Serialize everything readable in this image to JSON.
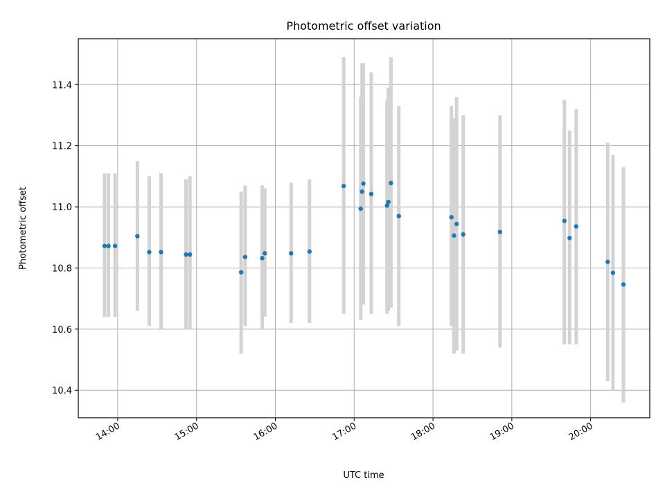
{
  "chart_data": {
    "type": "scatter",
    "title": "Photometric offset variation",
    "xlabel": "UTC time",
    "ylabel": "Photometric offset",
    "x_unit": "UTC time (HH:MM)",
    "xlim": [
      "13:30",
      "20:45"
    ],
    "ylim": [
      10.31,
      11.55
    ],
    "x_ticks": [
      "14:00",
      "15:00",
      "16:00",
      "17:00",
      "18:00",
      "19:00",
      "20:00"
    ],
    "y_ticks": [
      10.4,
      10.6,
      10.8,
      11.0,
      11.2,
      11.4
    ],
    "y_tick_labels": [
      "10.4",
      "10.6",
      "10.8",
      "11.0",
      "11.2",
      "11.4"
    ],
    "grid": true,
    "legend": "none",
    "colors": {
      "marker": "#1f77b4",
      "errorbar": "#d3d3d3",
      "grid": "#b0b0b0"
    },
    "points": [
      {
        "x": "13:50",
        "y": 10.872,
        "lo": 10.64,
        "hi": 11.11
      },
      {
        "x": "13:53",
        "y": 10.872,
        "lo": 10.64,
        "hi": 11.11
      },
      {
        "x": "13:58",
        "y": 10.872,
        "lo": 10.64,
        "hi": 11.11
      },
      {
        "x": "14:15",
        "y": 10.904,
        "lo": 10.66,
        "hi": 11.15
      },
      {
        "x": "14:24",
        "y": 10.852,
        "lo": 10.61,
        "hi": 11.1
      },
      {
        "x": "14:33",
        "y": 10.852,
        "lo": 10.6,
        "hi": 11.11
      },
      {
        "x": "14:52",
        "y": 10.844,
        "lo": 10.6,
        "hi": 11.09
      },
      {
        "x": "14:55",
        "y": 10.844,
        "lo": 10.6,
        "hi": 11.1
      },
      {
        "x": "15:34",
        "y": 10.786,
        "lo": 10.52,
        "hi": 11.05
      },
      {
        "x": "15:37",
        "y": 10.836,
        "lo": 10.61,
        "hi": 11.07
      },
      {
        "x": "15:50",
        "y": 10.832,
        "lo": 10.6,
        "hi": 11.07
      },
      {
        "x": "15:52",
        "y": 10.848,
        "lo": 10.64,
        "hi": 11.06
      },
      {
        "x": "16:12",
        "y": 10.848,
        "lo": 10.62,
        "hi": 11.08
      },
      {
        "x": "16:26",
        "y": 10.854,
        "lo": 10.62,
        "hi": 11.09
      },
      {
        "x": "16:52",
        "y": 11.068,
        "lo": 10.65,
        "hi": 11.49
      },
      {
        "x": "17:05",
        "y": 10.994,
        "lo": 10.63,
        "hi": 11.36
      },
      {
        "x": "17:06",
        "y": 11.05,
        "lo": 10.68,
        "hi": 11.47
      },
      {
        "x": "17:07",
        "y": 11.076,
        "lo": 10.68,
        "hi": 11.47
      },
      {
        "x": "17:13",
        "y": 11.042,
        "lo": 10.65,
        "hi": 11.44
      },
      {
        "x": "17:25",
        "y": 11.004,
        "lo": 10.65,
        "hi": 11.35
      },
      {
        "x": "17:26",
        "y": 11.016,
        "lo": 10.66,
        "hi": 11.39
      },
      {
        "x": "17:28",
        "y": 11.078,
        "lo": 10.67,
        "hi": 11.49
      },
      {
        "x": "17:34",
        "y": 10.97,
        "lo": 10.61,
        "hi": 11.33
      },
      {
        "x": "18:14",
        "y": 10.966,
        "lo": 10.61,
        "hi": 11.33
      },
      {
        "x": "18:16",
        "y": 10.906,
        "lo": 10.52,
        "hi": 11.29
      },
      {
        "x": "18:18",
        "y": 10.944,
        "lo": 10.53,
        "hi": 11.36
      },
      {
        "x": "18:23",
        "y": 10.91,
        "lo": 10.52,
        "hi": 11.3
      },
      {
        "x": "18:51",
        "y": 10.918,
        "lo": 10.54,
        "hi": 11.3
      },
      {
        "x": "19:40",
        "y": 10.954,
        "lo": 10.55,
        "hi": 11.35
      },
      {
        "x": "19:44",
        "y": 10.898,
        "lo": 10.55,
        "hi": 11.25
      },
      {
        "x": "19:49",
        "y": 10.936,
        "lo": 10.55,
        "hi": 11.32
      },
      {
        "x": "20:13",
        "y": 10.82,
        "lo": 10.43,
        "hi": 11.21
      },
      {
        "x": "20:17",
        "y": 10.784,
        "lo": 10.4,
        "hi": 11.17
      },
      {
        "x": "20:25",
        "y": 10.746,
        "lo": 10.36,
        "hi": 11.13
      }
    ]
  }
}
